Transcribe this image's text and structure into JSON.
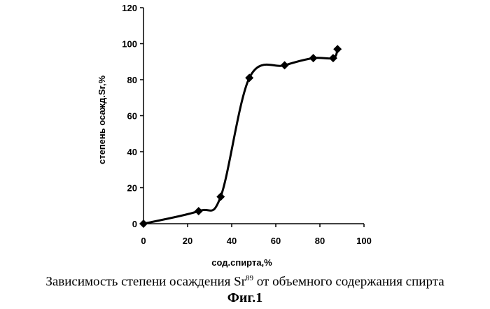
{
  "chart_data": {
    "type": "line",
    "title": "",
    "xlabel": "сод.спирта,%",
    "ylabel": "степень осажд.Sr,%",
    "xlim": [
      0,
      100
    ],
    "ylim": [
      0,
      120
    ],
    "x_ticks": [
      0,
      20,
      40,
      60,
      80,
      100
    ],
    "y_ticks": [
      0,
      20,
      40,
      60,
      80,
      100,
      120
    ],
    "grid": false,
    "legend": "none",
    "marker": "diamond",
    "line_color": "#000000",
    "series": [
      {
        "x": [
          0,
          25,
          35,
          48,
          64,
          77,
          86,
          88
        ],
        "y": [
          0,
          7,
          15,
          81,
          88,
          92,
          92,
          97
        ]
      }
    ]
  },
  "caption": {
    "text_before": "Зависимость степени осаждения Sr",
    "superscript": "89",
    "text_after": " от объемного содержания спирта",
    "figure_label": "Фиг.1"
  }
}
